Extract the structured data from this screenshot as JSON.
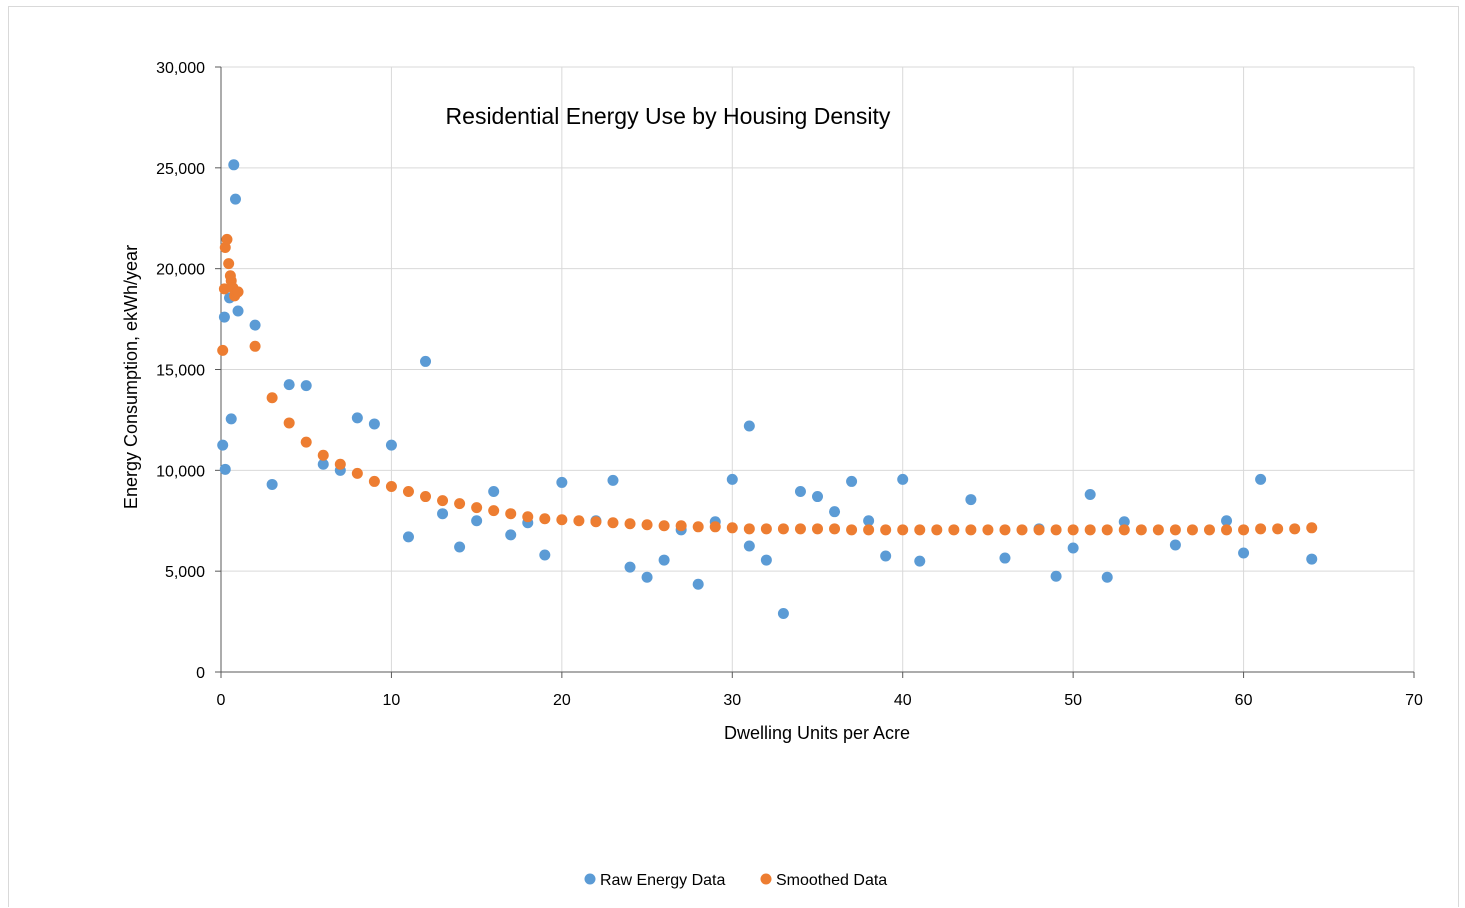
{
  "chart_data": {
    "type": "scatter",
    "title": "Residential Energy Use by Housing Density",
    "xlabel": "Dwelling Units per Acre",
    "ylabel": "Energy Consumption, ekWh/year",
    "xlim": [
      0,
      70
    ],
    "ylim": [
      0,
      30000
    ],
    "x_ticks": [
      0,
      10,
      20,
      30,
      40,
      50,
      60,
      70
    ],
    "y_ticks": [
      0,
      5000,
      10000,
      15000,
      20000,
      25000,
      30000
    ],
    "x_tick_labels": [
      "0",
      "10",
      "20",
      "30",
      "40",
      "50",
      "60",
      "70"
    ],
    "y_tick_labels": [
      "0",
      "5,000",
      "10,000",
      "15,000",
      "20,000",
      "25,000",
      "30,000"
    ],
    "grid": true,
    "legend_position": "bottom",
    "series": [
      {
        "name": "Raw Energy Data",
        "color": "#5b9bd5",
        "points": [
          [
            0.1,
            11250
          ],
          [
            0.2,
            17600
          ],
          [
            0.25,
            10050
          ],
          [
            0.5,
            18550
          ],
          [
            0.6,
            12550
          ],
          [
            0.75,
            25150
          ],
          [
            0.85,
            23450
          ],
          [
            1.0,
            17900
          ],
          [
            2.0,
            17200
          ],
          [
            3.0,
            9300
          ],
          [
            4.0,
            14250
          ],
          [
            5.0,
            14200
          ],
          [
            6.0,
            10300
          ],
          [
            7.0,
            10000
          ],
          [
            8.0,
            12600
          ],
          [
            9.0,
            12300
          ],
          [
            10.0,
            11250
          ],
          [
            11.0,
            6700
          ],
          [
            12.0,
            15400
          ],
          [
            13.0,
            7850
          ],
          [
            14.0,
            6200
          ],
          [
            15.0,
            7500
          ],
          [
            16.0,
            8950
          ],
          [
            17.0,
            6800
          ],
          [
            18.0,
            7400
          ],
          [
            19.0,
            5800
          ],
          [
            20.0,
            9400
          ],
          [
            22.0,
            7500
          ],
          [
            23.0,
            9500
          ],
          [
            24.0,
            5200
          ],
          [
            25.0,
            4700
          ],
          [
            26.0,
            5550
          ],
          [
            27.0,
            7050
          ],
          [
            28.0,
            4350
          ],
          [
            29.0,
            7450
          ],
          [
            30.0,
            9550
          ],
          [
            31.0,
            6250
          ],
          [
            31.0,
            12200
          ],
          [
            32.0,
            5550
          ],
          [
            33.0,
            2900
          ],
          [
            34.0,
            8950
          ],
          [
            35.0,
            8700
          ],
          [
            36.0,
            7950
          ],
          [
            37.0,
            9450
          ],
          [
            38.0,
            7500
          ],
          [
            39.0,
            5750
          ],
          [
            40.0,
            9550
          ],
          [
            41.0,
            5500
          ],
          [
            44.0,
            8550
          ],
          [
            46.0,
            5650
          ],
          [
            48.0,
            7100
          ],
          [
            49.0,
            4750
          ],
          [
            50.0,
            6150
          ],
          [
            51.0,
            8800
          ],
          [
            52.0,
            4700
          ],
          [
            53.0,
            7450
          ],
          [
            56.0,
            6300
          ],
          [
            59.0,
            7500
          ],
          [
            60.0,
            5900
          ],
          [
            61.0,
            9550
          ],
          [
            64.0,
            5600
          ]
        ]
      },
      {
        "name": "Smoothed Data",
        "color": "#ed7d31",
        "points": [
          [
            0.1,
            15950
          ],
          [
            0.2,
            19000
          ],
          [
            0.25,
            21050
          ],
          [
            0.35,
            21450
          ],
          [
            0.45,
            20250
          ],
          [
            0.55,
            19650
          ],
          [
            0.6,
            19400
          ],
          [
            0.7,
            19050
          ],
          [
            0.8,
            18650
          ],
          [
            0.9,
            18800
          ],
          [
            1.0,
            18850
          ],
          [
            2.0,
            16150
          ],
          [
            3.0,
            13600
          ],
          [
            4.0,
            12350
          ],
          [
            5.0,
            11400
          ],
          [
            6.0,
            10750
          ],
          [
            7.0,
            10300
          ],
          [
            8.0,
            9850
          ],
          [
            9.0,
            9450
          ],
          [
            10.0,
            9200
          ],
          [
            11.0,
            8950
          ],
          [
            12.0,
            8700
          ],
          [
            13.0,
            8500
          ],
          [
            14.0,
            8350
          ],
          [
            15.0,
            8150
          ],
          [
            16.0,
            8000
          ],
          [
            17.0,
            7850
          ],
          [
            18.0,
            7700
          ],
          [
            19.0,
            7600
          ],
          [
            20.0,
            7550
          ],
          [
            21.0,
            7500
          ],
          [
            22.0,
            7450
          ],
          [
            23.0,
            7400
          ],
          [
            24.0,
            7350
          ],
          [
            25.0,
            7300
          ],
          [
            26.0,
            7250
          ],
          [
            27.0,
            7250
          ],
          [
            28.0,
            7200
          ],
          [
            29.0,
            7200
          ],
          [
            30.0,
            7150
          ],
          [
            31.0,
            7100
          ],
          [
            32.0,
            7100
          ],
          [
            33.0,
            7100
          ],
          [
            34.0,
            7100
          ],
          [
            35.0,
            7100
          ],
          [
            36.0,
            7100
          ],
          [
            37.0,
            7050
          ],
          [
            38.0,
            7050
          ],
          [
            39.0,
            7050
          ],
          [
            40.0,
            7050
          ],
          [
            41.0,
            7050
          ],
          [
            42.0,
            7050
          ],
          [
            43.0,
            7050
          ],
          [
            44.0,
            7050
          ],
          [
            45.0,
            7050
          ],
          [
            46.0,
            7050
          ],
          [
            47.0,
            7050
          ],
          [
            48.0,
            7050
          ],
          [
            49.0,
            7050
          ],
          [
            50.0,
            7050
          ],
          [
            51.0,
            7050
          ],
          [
            52.0,
            7050
          ],
          [
            53.0,
            7050
          ],
          [
            54.0,
            7050
          ],
          [
            55.0,
            7050
          ],
          [
            56.0,
            7050
          ],
          [
            57.0,
            7050
          ],
          [
            58.0,
            7050
          ],
          [
            59.0,
            7050
          ],
          [
            60.0,
            7050
          ],
          [
            61.0,
            7100
          ],
          [
            62.0,
            7100
          ],
          [
            63.0,
            7100
          ],
          [
            64.0,
            7150
          ]
        ]
      }
    ]
  }
}
